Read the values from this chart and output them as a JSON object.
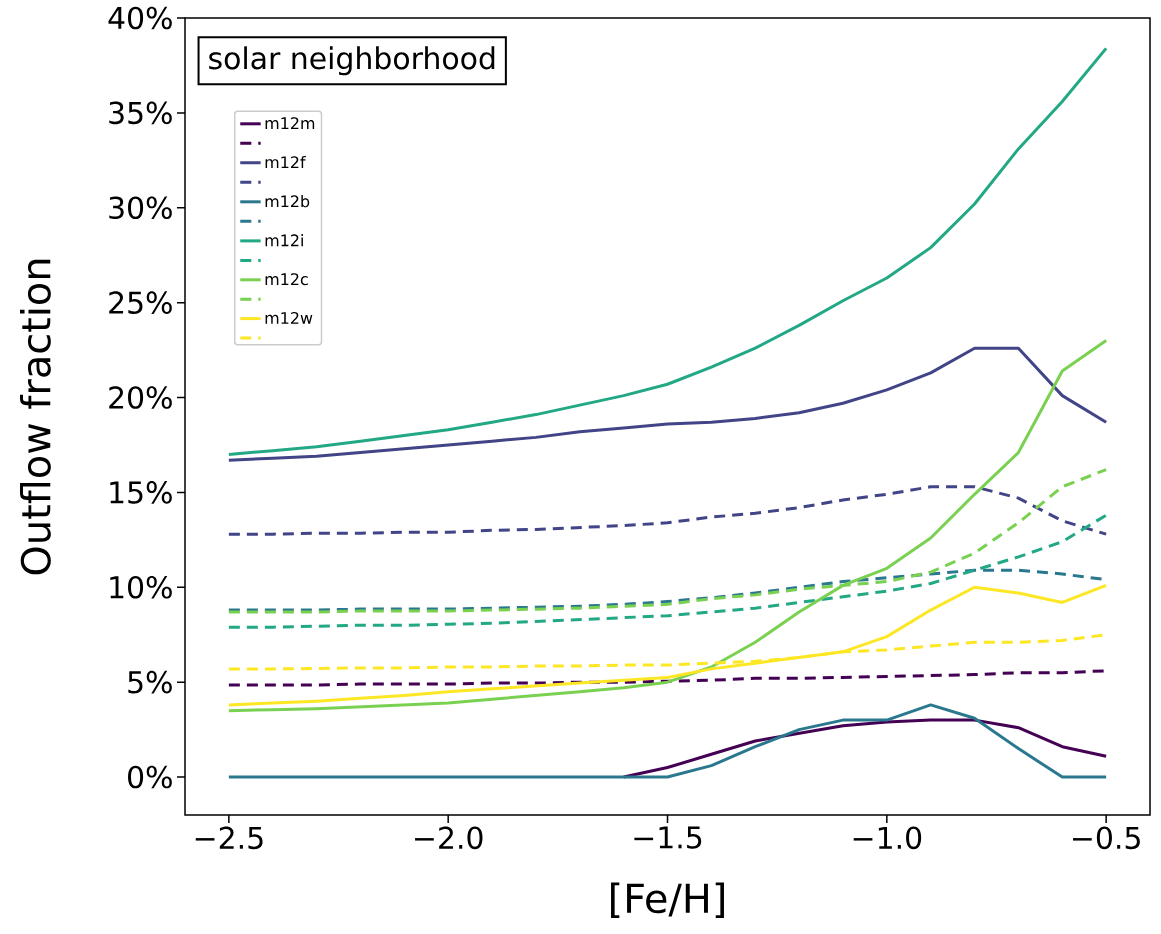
{
  "chart_data": {
    "type": "line",
    "xlabel": "[Fe/H]",
    "ylabel": "Outflow fraction",
    "annotations": [
      "solar neighborhood"
    ],
    "legend": "top left",
    "xlim": [
      -2.6,
      -0.4
    ],
    "ylim": [
      -2,
      40
    ],
    "xticks": [
      {
        "value": -2.5,
        "label": "−2.5"
      },
      {
        "value": -2.0,
        "label": "−2.0"
      },
      {
        "value": -1.5,
        "label": "−1.5"
      },
      {
        "value": -1.0,
        "label": "−1.0"
      },
      {
        "value": -0.5,
        "label": "−0.5"
      }
    ],
    "yticks": [
      {
        "value": 0,
        "label": "0%"
      },
      {
        "value": 5,
        "label": "5%"
      },
      {
        "value": 10,
        "label": "10%"
      },
      {
        "value": 15,
        "label": "15%"
      },
      {
        "value": 20,
        "label": "20%"
      },
      {
        "value": 25,
        "label": "25%"
      },
      {
        "value": 30,
        "label": "30%"
      },
      {
        "value": 35,
        "label": "35%"
      },
      {
        "value": 40,
        "label": "40%"
      }
    ],
    "x": [
      -2.5,
      -2.4,
      -2.3,
      -2.2,
      -2.1,
      -2.0,
      -1.9,
      -1.8,
      -1.7,
      -1.6,
      -1.5,
      -1.4,
      -1.3,
      -1.2,
      -1.1,
      -1.0,
      -0.9,
      -0.8,
      -0.7,
      -0.6,
      -0.5
    ],
    "series": [
      {
        "name": "m12m",
        "color": "#440154",
        "line_style": "solid",
        "values": [
          null,
          null,
          null,
          null,
          null,
          null,
          null,
          null,
          null,
          0,
          0.5,
          1.2,
          1.9,
          2.3,
          2.7,
          2.9,
          3.0,
          3.0,
          2.6,
          1.6,
          1.1
        ]
      },
      {
        "color": "#440154",
        "line_style": "dashed",
        "values": [
          4.85,
          4.85,
          4.85,
          4.9,
          4.9,
          4.9,
          4.95,
          4.95,
          5.0,
          5.0,
          5.05,
          5.1,
          5.2,
          5.2,
          5.25,
          5.3,
          5.35,
          5.4,
          5.5,
          5.5,
          5.6
        ]
      },
      {
        "name": "m12f",
        "color": "#414487",
        "line_style": "solid",
        "values": [
          16.7,
          16.8,
          16.9,
          17.1,
          17.3,
          17.5,
          17.7,
          17.9,
          18.2,
          18.4,
          18.6,
          18.7,
          18.9,
          19.2,
          19.7,
          20.4,
          21.3,
          22.6,
          22.6,
          20.1,
          18.7
        ]
      },
      {
        "color": "#414487",
        "line_style": "dashed",
        "values": [
          12.8,
          12.8,
          12.85,
          12.85,
          12.9,
          12.9,
          13.0,
          13.05,
          13.15,
          13.25,
          13.4,
          13.7,
          13.9,
          14.2,
          14.6,
          14.9,
          15.3,
          15.3,
          14.7,
          13.5,
          12.8
        ]
      },
      {
        "name": "m12b",
        "color": "#2a788e",
        "line_style": "solid",
        "values": [
          0,
          0,
          0,
          0,
          0,
          0,
          0,
          0,
          0,
          0,
          0,
          0.6,
          1.6,
          2.5,
          3.0,
          3.0,
          3.8,
          3.1,
          1.5,
          0,
          0
        ]
      },
      {
        "color": "#2a788e",
        "line_style": "dashed",
        "values": [
          8.8,
          8.8,
          8.8,
          8.85,
          8.85,
          8.85,
          8.9,
          8.95,
          9.0,
          9.1,
          9.25,
          9.45,
          9.7,
          10.0,
          10.3,
          10.5,
          10.7,
          10.9,
          10.9,
          10.7,
          10.4
        ]
      },
      {
        "name": "m12i",
        "color": "#22a884",
        "line_style": "solid",
        "values": [
          17.0,
          17.2,
          17.4,
          17.7,
          18.0,
          18.3,
          18.7,
          19.1,
          19.6,
          20.1,
          20.7,
          21.6,
          22.6,
          23.8,
          25.1,
          26.3,
          27.9,
          30.2,
          33.1,
          35.6,
          38.4
        ]
      },
      {
        "color": "#22a884",
        "line_style": "dashed",
        "values": [
          7.9,
          7.9,
          7.95,
          8.0,
          8.0,
          8.05,
          8.1,
          8.2,
          8.3,
          8.4,
          8.5,
          8.7,
          8.9,
          9.2,
          9.5,
          9.8,
          10.2,
          10.9,
          11.6,
          12.4,
          13.8
        ]
      },
      {
        "name": "m12c",
        "color": "#7ad151",
        "line_style": "solid",
        "values": [
          3.5,
          3.55,
          3.6,
          3.7,
          3.8,
          3.9,
          4.1,
          4.3,
          4.5,
          4.7,
          5.0,
          5.8,
          7.1,
          8.7,
          10.1,
          11.0,
          12.6,
          14.9,
          17.1,
          21.4,
          23.0
        ]
      },
      {
        "color": "#7ad151",
        "line_style": "dashed",
        "values": [
          8.7,
          8.7,
          8.7,
          8.75,
          8.75,
          8.75,
          8.8,
          8.85,
          8.9,
          9.0,
          9.1,
          9.4,
          9.6,
          9.9,
          10.1,
          10.3,
          10.8,
          11.8,
          13.4,
          15.3,
          16.2
        ]
      },
      {
        "name": "m12w",
        "color": "#fde725",
        "line_style": "solid",
        "values": [
          3.8,
          3.9,
          4.0,
          4.15,
          4.3,
          4.5,
          4.65,
          4.8,
          4.95,
          5.1,
          5.25,
          5.7,
          6.0,
          6.3,
          6.6,
          7.4,
          8.8,
          10.0,
          9.7,
          9.2,
          10.1
        ]
      },
      {
        "color": "#fde725",
        "line_style": "dashed",
        "values": [
          5.7,
          5.7,
          5.72,
          5.75,
          5.75,
          5.8,
          5.8,
          5.85,
          5.85,
          5.9,
          5.9,
          6.0,
          6.1,
          6.3,
          6.6,
          6.7,
          6.9,
          7.1,
          7.1,
          7.2,
          7.5
        ]
      }
    ]
  }
}
